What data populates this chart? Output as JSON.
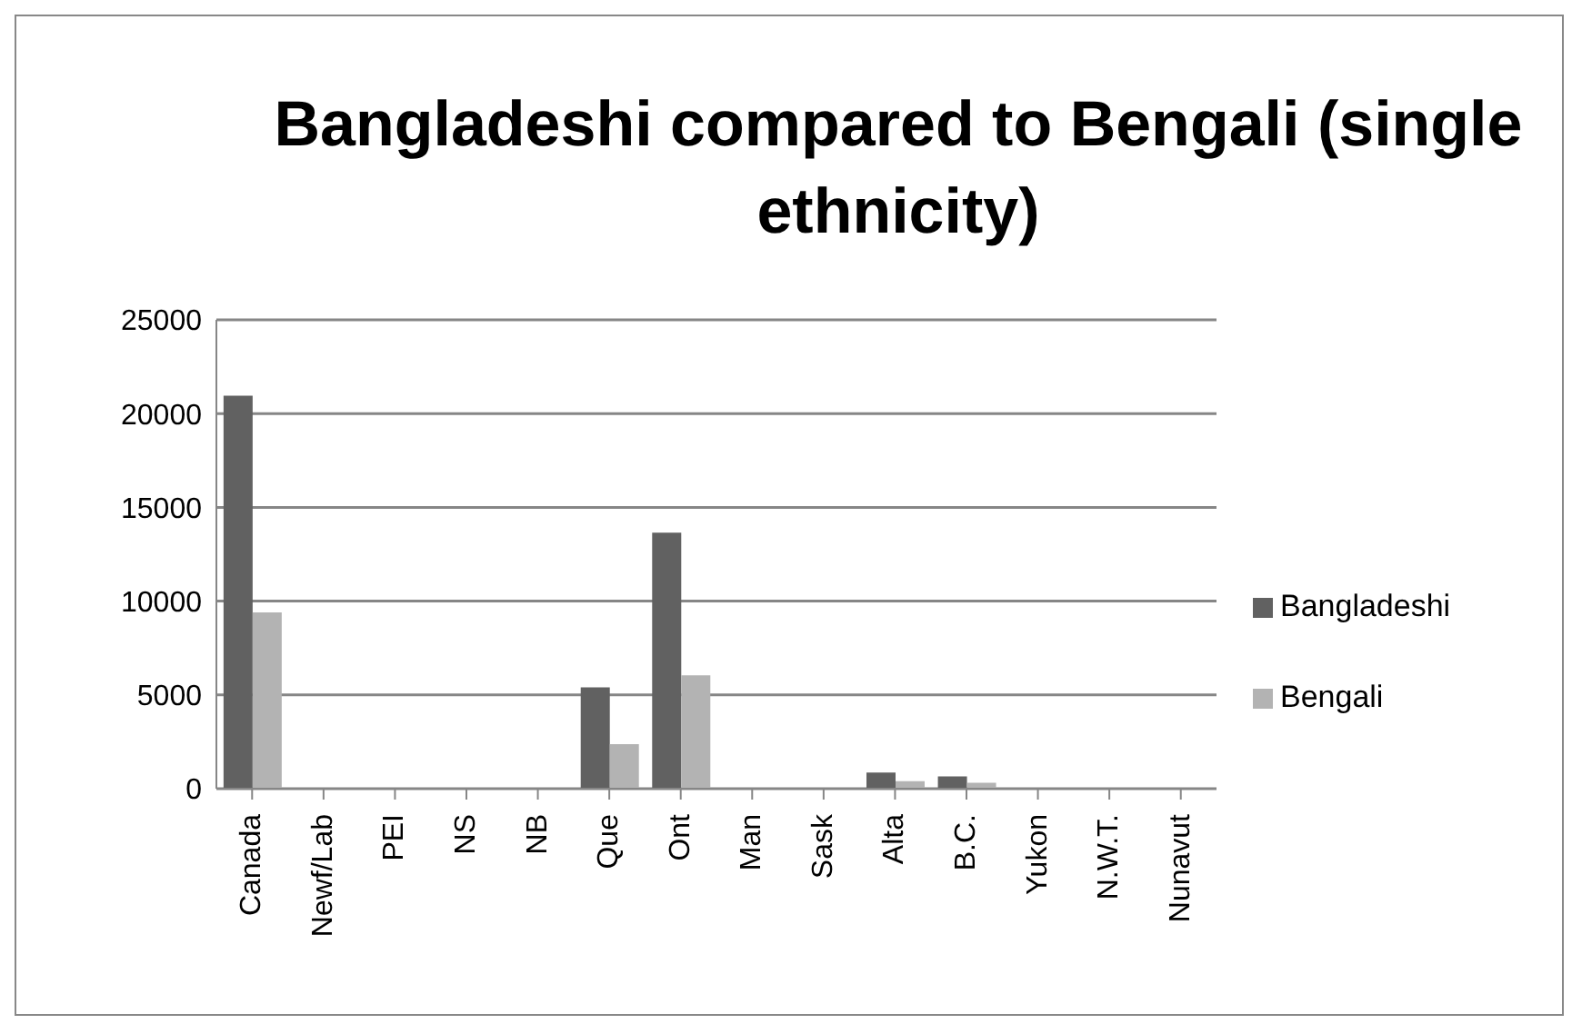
{
  "chart_data": {
    "type": "bar",
    "title": "Bangladeshi compared to Bengali (single ethnicity)",
    "categories": [
      "Canada",
      "Newf/Lab",
      "PEI",
      "NS",
      "NB",
      "Que",
      "Ont",
      "Man",
      "Sask",
      "Alta",
      "B.C.",
      "Yukon",
      "N.W.T.",
      "Nunavut"
    ],
    "series": [
      {
        "name": "Bangladeshi",
        "color": "#616161",
        "values": [
          20950,
          0,
          0,
          0,
          0,
          5400,
          13650,
          50,
          0,
          860,
          650,
          0,
          0,
          0
        ]
      },
      {
        "name": "Bengali",
        "color": "#b3b3b3",
        "values": [
          9400,
          0,
          0,
          0,
          0,
          2380,
          6050,
          0,
          0,
          400,
          320,
          0,
          0,
          0
        ]
      }
    ],
    "ylim": [
      0,
      25000
    ],
    "yticks": [
      0,
      5000,
      10000,
      15000,
      20000,
      25000
    ],
    "grid": "y",
    "legend": "right"
  }
}
